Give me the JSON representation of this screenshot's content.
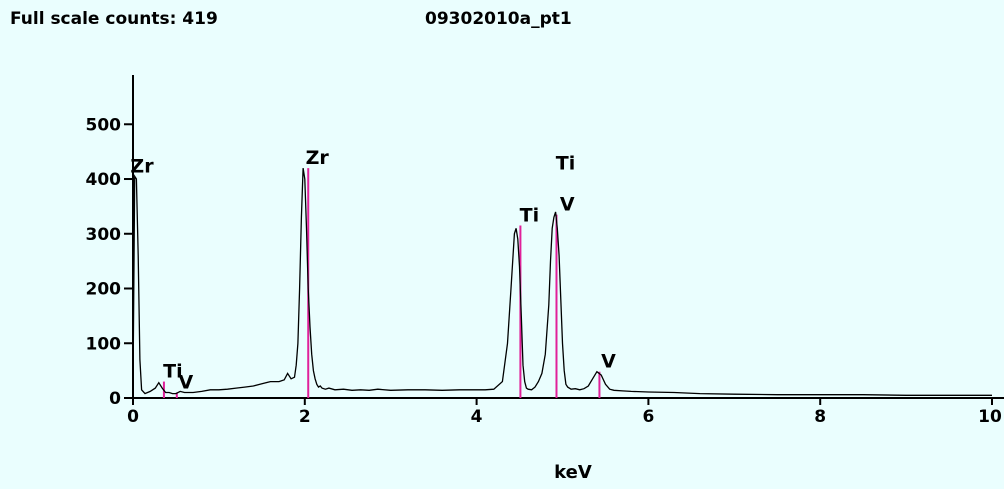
{
  "header": {
    "full_scale_label": "Full scale counts: 419",
    "spectrum_name": "09302010a_pt1"
  },
  "colors": {
    "background": "#eafefe",
    "trace": "#000000",
    "marker": "#e0209a"
  },
  "chart_data": {
    "type": "line",
    "title": "09302010a_pt1",
    "xlabel": "keV",
    "ylabel": "",
    "xlim": [
      0,
      10
    ],
    "ylim": [
      0,
      590
    ],
    "x_ticks": [
      0,
      2,
      4,
      6,
      8,
      10
    ],
    "x_tick_labels": [
      "0",
      "2",
      "4",
      "6",
      "8",
      "10"
    ],
    "y_ticks": [
      0,
      100,
      200,
      300,
      400,
      500
    ],
    "y_tick_labels": [
      "0",
      "100",
      "200",
      "300",
      "400",
      "500"
    ],
    "grid": false,
    "series": [
      {
        "name": "",
        "x": [
          0.0,
          0.02,
          0.04,
          0.06,
          0.08,
          0.1,
          0.14,
          0.2,
          0.26,
          0.3,
          0.34,
          0.38,
          0.42,
          0.46,
          0.5,
          0.55,
          0.6,
          0.7,
          0.8,
          0.9,
          1.0,
          1.1,
          1.2,
          1.3,
          1.4,
          1.5,
          1.6,
          1.7,
          1.76,
          1.8,
          1.84,
          1.88,
          1.9,
          1.92,
          1.94,
          1.96,
          1.98,
          2.0,
          2.02,
          2.04,
          2.06,
          2.08,
          2.1,
          2.12,
          2.14,
          2.16,
          2.18,
          2.2,
          2.24,
          2.28,
          2.35,
          2.45,
          2.55,
          2.65,
          2.75,
          2.85,
          3.0,
          3.2,
          3.4,
          3.6,
          3.8,
          4.0,
          4.1,
          4.2,
          4.3,
          4.36,
          4.4,
          4.44,
          4.46,
          4.48,
          4.5,
          4.52,
          4.54,
          4.56,
          4.58,
          4.6,
          4.64,
          4.68,
          4.72,
          4.76,
          4.8,
          4.84,
          4.86,
          4.88,
          4.9,
          4.92,
          4.94,
          4.96,
          4.98,
          5.0,
          5.02,
          5.04,
          5.06,
          5.1,
          5.15,
          5.2,
          5.25,
          5.3,
          5.35,
          5.4,
          5.45,
          5.5,
          5.55,
          5.6,
          5.7,
          5.8,
          6.0,
          6.3,
          6.6,
          7.0,
          7.5,
          8.0,
          8.5,
          9.0,
          9.5,
          10.0
        ],
        "y": [
          20,
          405,
          400,
          260,
          70,
          15,
          8,
          12,
          18,
          28,
          18,
          10,
          10,
          8,
          8,
          12,
          10,
          10,
          12,
          15,
          15,
          16,
          18,
          20,
          22,
          26,
          30,
          30,
          33,
          45,
          35,
          38,
          60,
          100,
          200,
          330,
          420,
          400,
          310,
          200,
          130,
          80,
          50,
          35,
          25,
          20,
          22,
          18,
          16,
          18,
          15,
          16,
          14,
          15,
          14,
          16,
          14,
          15,
          15,
          14,
          15,
          15,
          15,
          16,
          30,
          100,
          200,
          300,
          310,
          290,
          240,
          150,
          60,
          30,
          18,
          16,
          15,
          20,
          30,
          45,
          80,
          170,
          250,
          310,
          330,
          340,
          310,
          260,
          180,
          100,
          50,
          25,
          20,
          16,
          17,
          15,
          17,
          22,
          35,
          48,
          42,
          25,
          16,
          14,
          13,
          12,
          11,
          10,
          8,
          7,
          6,
          6,
          6,
          5,
          5,
          5
        ]
      }
    ],
    "annotations": [
      {
        "text": "Zr",
        "x": 0.0,
        "y": 405
      },
      {
        "text": "Zr",
        "x": 2.04,
        "y": 420
      },
      {
        "text": "Ti",
        "x": 0.36,
        "y": 30
      },
      {
        "text": "V",
        "x": 0.51,
        "y": 10
      },
      {
        "text": "Ti",
        "x": 4.51,
        "y": 315
      },
      {
        "text": "Ti",
        "x": 4.93,
        "y": 410
      },
      {
        "text": "V",
        "x": 4.95,
        "y": 335
      },
      {
        "text": "V",
        "x": 5.43,
        "y": 48
      }
    ],
    "markers": [
      {
        "x": 0.36,
        "y": 30
      },
      {
        "x": 0.51,
        "y": 10
      },
      {
        "x": 2.04,
        "y": 420
      },
      {
        "x": 4.51,
        "y": 315
      },
      {
        "x": 4.93,
        "y": 335
      },
      {
        "x": 5.43,
        "y": 48
      }
    ]
  }
}
